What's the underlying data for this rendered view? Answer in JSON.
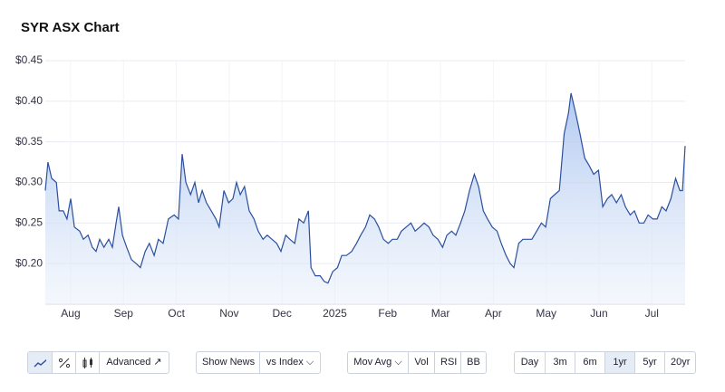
{
  "chart_data": {
    "type": "line",
    "title": "SYR ASX Chart",
    "x": [
      0.52,
      0.57,
      0.64,
      0.73,
      0.78,
      0.86,
      0.93,
      1.0,
      1.07,
      1.17,
      1.24,
      1.33,
      1.41,
      1.48,
      1.55,
      1.63,
      1.72,
      1.79,
      1.86,
      1.91,
      1.98,
      2.06,
      2.15,
      2.24,
      2.32,
      2.41,
      2.49,
      2.58,
      2.66,
      2.75,
      2.85,
      2.96,
      3.04,
      3.11,
      3.18,
      3.27,
      3.35,
      3.42,
      3.49,
      3.57,
      3.66,
      3.75,
      3.81,
      3.9,
      3.99,
      4.07,
      4.14,
      4.21,
      4.29,
      4.38,
      4.47,
      4.55,
      4.64,
      4.72,
      4.81,
      4.9,
      4.98,
      5.07,
      5.15,
      5.24,
      5.32,
      5.41,
      5.5,
      5.55,
      5.63,
      5.72,
      5.8,
      5.87,
      5.96,
      6.05,
      6.13,
      6.22,
      6.32,
      6.41,
      6.49,
      6.58,
      6.66,
      6.75,
      6.83,
      6.92,
      7.01,
      7.09,
      7.18,
      7.26,
      7.35,
      7.44,
      7.52,
      7.61,
      7.69,
      7.78,
      7.86,
      7.95,
      8.04,
      8.12,
      8.21,
      8.29,
      8.38,
      8.46,
      8.55,
      8.64,
      8.72,
      8.81,
      8.89,
      8.98,
      9.07,
      9.15,
      9.24,
      9.32,
      9.39,
      9.48,
      9.56,
      9.65,
      9.73,
      9.82,
      9.91,
      9.99,
      10.08,
      10.16,
      10.25,
      10.34,
      10.42,
      10.47,
      10.56,
      10.64,
      10.73,
      10.82,
      10.9,
      10.99,
      11.07,
      11.16,
      11.24,
      11.33,
      11.42,
      11.5,
      11.59,
      11.67,
      11.76,
      11.85,
      11.93,
      12.02,
      12.1,
      12.19,
      12.27,
      12.36,
      12.45,
      12.53,
      12.58,
      12.63
    ],
    "values": [
      0.29,
      0.325,
      0.305,
      0.3,
      0.265,
      0.265,
      0.255,
      0.28,
      0.245,
      0.24,
      0.23,
      0.235,
      0.22,
      0.215,
      0.23,
      0.22,
      0.23,
      0.22,
      0.25,
      0.27,
      0.235,
      0.22,
      0.205,
      0.2,
      0.195,
      0.215,
      0.225,
      0.21,
      0.23,
      0.225,
      0.255,
      0.26,
      0.255,
      0.335,
      0.3,
      0.285,
      0.3,
      0.275,
      0.29,
      0.275,
      0.265,
      0.255,
      0.245,
      0.29,
      0.275,
      0.28,
      0.3,
      0.285,
      0.295,
      0.265,
      0.255,
      0.24,
      0.23,
      0.235,
      0.23,
      0.225,
      0.215,
      0.235,
      0.23,
      0.225,
      0.255,
      0.25,
      0.265,
      0.195,
      0.185,
      0.185,
      0.178,
      0.176,
      0.19,
      0.195,
      0.21,
      0.21,
      0.215,
      0.225,
      0.235,
      0.245,
      0.26,
      0.255,
      0.245,
      0.23,
      0.225,
      0.23,
      0.23,
      0.24,
      0.245,
      0.25,
      0.24,
      0.245,
      0.25,
      0.245,
      0.235,
      0.23,
      0.22,
      0.235,
      0.24,
      0.235,
      0.25,
      0.265,
      0.29,
      0.31,
      0.295,
      0.265,
      0.255,
      0.245,
      0.24,
      0.225,
      0.21,
      0.2,
      0.195,
      0.225,
      0.23,
      0.23,
      0.23,
      0.24,
      0.25,
      0.245,
      0.28,
      0.285,
      0.29,
      0.36,
      0.385,
      0.41,
      0.385,
      0.36,
      0.33,
      0.32,
      0.31,
      0.315,
      0.27,
      0.28,
      0.285,
      0.275,
      0.285,
      0.27,
      0.26,
      0.265,
      0.25,
      0.25,
      0.26,
      0.255,
      0.255,
      0.27,
      0.265,
      0.28,
      0.305,
      0.29,
      0.29,
      0.345
    ],
    "color": "#2b4f9e",
    "xlim": [
      0.52,
      12.63
    ],
    "xticks": [
      {
        "value": 1,
        "label": "Aug"
      },
      {
        "value": 2,
        "label": "Sep"
      },
      {
        "value": 3,
        "label": "Oct"
      },
      {
        "value": 4,
        "label": "Nov"
      },
      {
        "value": 5,
        "label": "Dec"
      },
      {
        "value": 6,
        "label": "2025"
      },
      {
        "value": 7,
        "label": "Feb"
      },
      {
        "value": 8,
        "label": "Mar"
      },
      {
        "value": 9,
        "label": "Apr"
      },
      {
        "value": 10,
        "label": "May"
      },
      {
        "value": 11,
        "label": "Jun"
      },
      {
        "value": 12,
        "label": "Jul"
      }
    ],
    "ylim": [
      0.15,
      0.45
    ],
    "yticks": [
      {
        "value": 0.2,
        "label": "$0.20"
      },
      {
        "value": 0.25,
        "label": "$0.25"
      },
      {
        "value": 0.3,
        "label": "$0.30"
      },
      {
        "value": 0.35,
        "label": "$0.35"
      },
      {
        "value": 0.4,
        "label": "$0.40"
      },
      {
        "value": 0.45,
        "label": "$0.45"
      }
    ],
    "grid": true
  },
  "controls": {
    "advanced": "Advanced",
    "news": "Show News",
    "index": "vs Index",
    "mov_avg": "Mov Avg",
    "vol": "Vol",
    "rsi": "RSI",
    "bb": "BB",
    "ranges": [
      "Day",
      "3m",
      "6m",
      "1yr",
      "5yr",
      "20yr"
    ],
    "active_range": "1yr"
  }
}
